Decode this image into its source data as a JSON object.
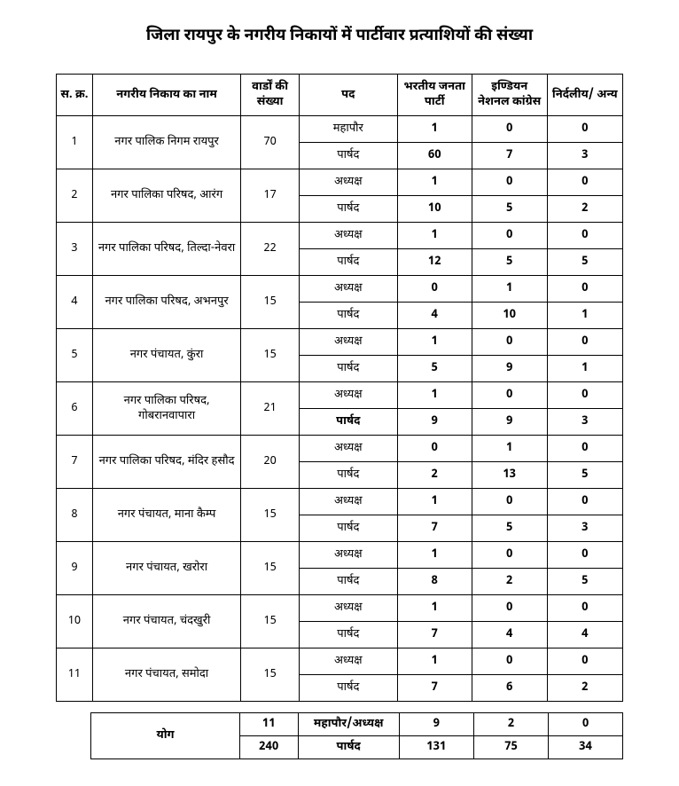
{
  "title": "जिला रायपुर के नगरीय निकायों में पार्टीवार प्रत्याशियों की संख्या",
  "columns": {
    "sno": "स. क्र.",
    "body": "नगरीय निकाय का नाम",
    "wards": "वार्डों की संख्या",
    "post": "पद",
    "bjp": "भरतीय जनता पार्टी",
    "inc": "इण्डियन नेशनल कांग्रेस",
    "ind": "निर्दलीय/ अन्य"
  },
  "posts": {
    "mayor": "महापौर",
    "president": "अध्यक्ष",
    "councillor": "पार्षद",
    "councillor_bold": "पार्षद"
  },
  "rows": [
    {
      "sno": "1",
      "body": "नगर पालिक निगम रायपुर",
      "wards": "70",
      "head_post": "mayor",
      "head": {
        "bjp": "1",
        "inc": "0",
        "ind": "0"
      },
      "member": {
        "bjp": "60",
        "inc": "7",
        "ind": "3"
      }
    },
    {
      "sno": "2",
      "body": "नगर पालिका परिषद, आरंग",
      "wards": "17",
      "head_post": "president",
      "head": {
        "bjp": "1",
        "inc": "0",
        "ind": "0"
      },
      "member": {
        "bjp": "10",
        "inc": "5",
        "ind": "2"
      }
    },
    {
      "sno": "3",
      "body": "नगर पालिका परिषद, तिल्दा-नेवरा",
      "wards": "22",
      "head_post": "president",
      "head": {
        "bjp": "1",
        "inc": "0",
        "ind": "0"
      },
      "member": {
        "bjp": "12",
        "inc": "5",
        "ind": "5"
      }
    },
    {
      "sno": "4",
      "body": "नगर पालिका परिषद, अभनपुर",
      "wards": "15",
      "head_post": "president",
      "head": {
        "bjp": "0",
        "inc": "1",
        "ind": "0"
      },
      "member": {
        "bjp": "4",
        "inc": "10",
        "ind": "1"
      }
    },
    {
      "sno": "5",
      "body": "नगर पंचायत, कुंरा",
      "wards": "15",
      "head_post": "president",
      "head": {
        "bjp": "1",
        "inc": "0",
        "ind": "0"
      },
      "member": {
        "bjp": "5",
        "inc": "9",
        "ind": "1"
      }
    },
    {
      "sno": "6",
      "body": "नगर पालिका परिषद, गोबरानवापारा",
      "wards": "21",
      "head_post": "president",
      "head": {
        "bjp": "1",
        "inc": "0",
        "ind": "0"
      },
      "member": {
        "bjp": "9",
        "inc": "9",
        "ind": "3"
      },
      "member_bold": true
    },
    {
      "sno": "7",
      "body": "नगर पालिका परिषद, मंदिर हसौद",
      "wards": "20",
      "head_post": "president",
      "head": {
        "bjp": "0",
        "inc": "1",
        "ind": "0"
      },
      "member": {
        "bjp": "2",
        "inc": "13",
        "ind": "5"
      }
    },
    {
      "sno": "8",
      "body": "नगर पंचायत, माना कैम्प",
      "wards": "15",
      "head_post": "president",
      "head": {
        "bjp": "1",
        "inc": "0",
        "ind": "0"
      },
      "member": {
        "bjp": "7",
        "inc": "5",
        "ind": "3"
      }
    },
    {
      "sno": "9",
      "body": "नगर पंचायत, खरोरा",
      "wards": "15",
      "head_post": "president",
      "head": {
        "bjp": "1",
        "inc": "0",
        "ind": "0"
      },
      "member": {
        "bjp": "8",
        "inc": "2",
        "ind": "5"
      }
    },
    {
      "sno": "10",
      "body": "नगर पंचायत, चंदखुरी",
      "wards": "15",
      "head_post": "president",
      "head": {
        "bjp": "1",
        "inc": "0",
        "ind": "0"
      },
      "member": {
        "bjp": "7",
        "inc": "4",
        "ind": "4"
      }
    },
    {
      "sno": "11",
      "body": "नगर पंचायत, समोदा",
      "wards": "15",
      "head_post": "president",
      "head": {
        "bjp": "1",
        "inc": "0",
        "ind": "0"
      },
      "member": {
        "bjp": "7",
        "inc": "6",
        "ind": "2"
      }
    }
  ],
  "total": {
    "label": "योग",
    "head_count": "11",
    "head_label": "महापौर/अध्यक्ष",
    "head": {
      "bjp": "9",
      "inc": "2",
      "ind": "0"
    },
    "member_count": "240",
    "member_label": "पार्षद",
    "member": {
      "bjp": "131",
      "inc": "75",
      "ind": "34"
    }
  },
  "widths": {
    "sno": 34,
    "body": 170,
    "wards": 60,
    "post": 110,
    "bjp": 80,
    "inc": 80,
    "ind": 80
  }
}
